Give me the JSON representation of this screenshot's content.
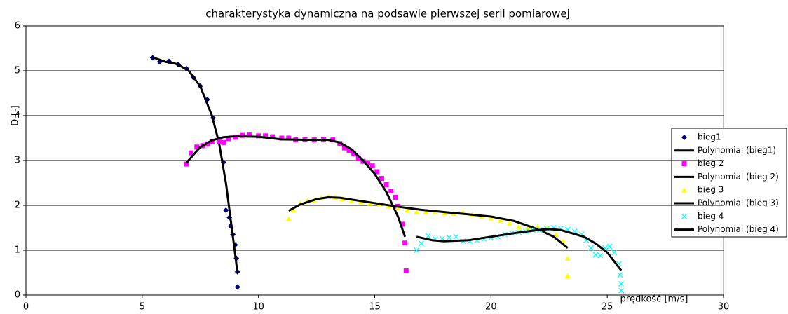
{
  "chart_data": {
    "type": "scatter",
    "title": "charakterystyka dynamiczna na podsawie pierwszej serii pomiarowej",
    "x_label": "prędkość [m/s]",
    "y_label": "D-[-]",
    "xlim": [
      0,
      30
    ],
    "xticks": [
      0,
      5,
      10,
      15,
      20,
      25,
      30
    ],
    "ylim": [
      0,
      6
    ],
    "yticks": [
      0,
      1,
      2,
      3,
      4,
      5,
      6
    ],
    "grid": true,
    "legend": "right",
    "series": [
      {
        "name": "bieg1",
        "color": "#000080",
        "marker": "diamond",
        "x": [
          5.45,
          5.75,
          6.15,
          6.55,
          6.9,
          7.2,
          7.5,
          7.8,
          8.05,
          8.5,
          8.6,
          8.75,
          8.8,
          8.9,
          9.0,
          9.05,
          9.1,
          9.1
        ],
        "values": [
          5.29,
          5.2,
          5.21,
          5.14,
          5.05,
          4.85,
          4.66,
          4.36,
          3.95,
          2.96,
          1.89,
          1.73,
          1.54,
          1.35,
          1.12,
          0.82,
          0.52,
          0.18
        ]
      },
      {
        "name": "Polynomial (bieg1)",
        "color": "#000000",
        "marker": "line",
        "x": [
          5.45,
          6,
          6.5,
          7,
          7.5,
          8,
          8.3,
          8.6,
          8.8,
          9.0,
          9.1
        ],
        "values": [
          5.3,
          5.2,
          5.15,
          5.0,
          4.65,
          4.0,
          3.4,
          2.5,
          1.7,
          0.9,
          0.48
        ]
      },
      {
        "name": "bieg 2",
        "color": "#ff00ff",
        "marker": "square",
        "x": [
          6.9,
          7.1,
          7.35,
          7.6,
          7.8,
          8.0,
          8.3,
          8.5,
          8.7,
          9.0,
          9.3,
          9.6,
          10.0,
          10.3,
          10.6,
          11.0,
          11.3,
          11.6,
          12.0,
          12.4,
          12.8,
          13.2,
          13.5,
          13.7,
          13.9,
          14.1,
          14.3,
          14.5,
          14.7,
          14.9,
          15.1,
          15.3,
          15.5,
          15.7,
          15.9,
          16.0,
          16.2,
          16.3,
          16.35
        ],
        "values": [
          2.92,
          3.17,
          3.3,
          3.33,
          3.37,
          3.42,
          3.43,
          3.4,
          3.49,
          3.52,
          3.56,
          3.57,
          3.55,
          3.55,
          3.53,
          3.5,
          3.5,
          3.46,
          3.47,
          3.46,
          3.47,
          3.46,
          3.38,
          3.28,
          3.22,
          3.15,
          3.05,
          2.98,
          2.95,
          2.88,
          2.75,
          2.6,
          2.46,
          2.32,
          2.18,
          1.98,
          1.58,
          1.16,
          0.54
        ]
      },
      {
        "name": "Polynomial (bieg 2)",
        "color": "#000000",
        "marker": "line",
        "x": [
          6.9,
          7.5,
          8,
          8.5,
          9,
          10,
          11,
          12,
          13,
          13.5,
          14,
          14.5,
          15,
          15.5,
          16,
          16.3
        ],
        "values": [
          2.95,
          3.3,
          3.45,
          3.52,
          3.54,
          3.53,
          3.47,
          3.46,
          3.46,
          3.4,
          3.25,
          3.0,
          2.7,
          2.3,
          1.75,
          1.3
        ]
      },
      {
        "name": "bieg 3",
        "color": "#ffff00",
        "marker": "triangle",
        "x": [
          11.3,
          11.5,
          11.8,
          12.1,
          12.4,
          12.7,
          13.0,
          13.3,
          13.6,
          14.0,
          14.4,
          14.8,
          15.2,
          15.6,
          16.0,
          16.4,
          16.8,
          17.2,
          17.6,
          18.0,
          18.4,
          18.8,
          19.2,
          19.6,
          20.0,
          20.4,
          20.8,
          21.2,
          21.6,
          22.0,
          22.4,
          22.8,
          23.1,
          23.3,
          23.3
        ],
        "values": [
          1.7,
          1.9,
          2.05,
          2.1,
          2.12,
          2.17,
          2.2,
          2.18,
          2.15,
          2.1,
          2.08,
          2.05,
          2.03,
          1.98,
          1.95,
          1.9,
          1.85,
          1.85,
          1.86,
          1.83,
          1.82,
          1.84,
          1.8,
          1.76,
          1.72,
          1.68,
          1.6,
          1.52,
          1.5,
          1.52,
          1.5,
          1.35,
          1.2,
          0.82,
          0.43
        ]
      },
      {
        "name": "Polynomial (bieg 3)",
        "color": "#000000",
        "marker": "line",
        "x": [
          11.3,
          11.8,
          12.5,
          13,
          13.5,
          14,
          15,
          16,
          17,
          18,
          19,
          20,
          21,
          22,
          22.7,
          23.3
        ],
        "values": [
          1.88,
          2.02,
          2.14,
          2.18,
          2.17,
          2.13,
          2.05,
          1.97,
          1.9,
          1.85,
          1.8,
          1.75,
          1.65,
          1.47,
          1.3,
          1.05
        ]
      },
      {
        "name": "bieg 4",
        "color": "#00ffff",
        "marker": "x",
        "x": [
          16.8,
          17.0,
          17.3,
          17.6,
          17.9,
          18.2,
          18.5,
          18.8,
          19.1,
          19.4,
          19.7,
          20.0,
          20.3,
          20.6,
          20.9,
          21.2,
          21.5,
          21.8,
          22.1,
          22.4,
          22.7,
          23.0,
          23.3,
          23.6,
          23.9,
          24.1,
          24.3,
          24.5,
          24.7,
          24.9,
          25.1,
          25.3,
          25.5,
          25.55,
          25.6,
          25.6
        ],
        "values": [
          1.0,
          1.15,
          1.32,
          1.25,
          1.26,
          1.28,
          1.3,
          1.2,
          1.2,
          1.22,
          1.25,
          1.28,
          1.3,
          1.35,
          1.38,
          1.4,
          1.42,
          1.45,
          1.45,
          1.48,
          1.5,
          1.48,
          1.46,
          1.42,
          1.35,
          1.22,
          1.05,
          0.9,
          0.88,
          1.05,
          1.08,
          0.95,
          0.7,
          0.45,
          0.25,
          0.1
        ]
      },
      {
        "name": "Polynomial (bieg 4)",
        "color": "#000000",
        "marker": "line",
        "x": [
          16.8,
          17.5,
          18,
          19,
          20,
          21,
          22,
          22.5,
          23,
          24,
          24.5,
          25,
          25.6
        ],
        "values": [
          1.3,
          1.22,
          1.2,
          1.22,
          1.3,
          1.38,
          1.45,
          1.47,
          1.45,
          1.3,
          1.15,
          0.95,
          0.55
        ]
      }
    ]
  }
}
